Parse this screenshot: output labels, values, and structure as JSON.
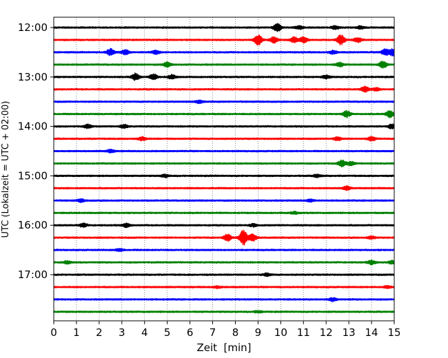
{
  "chart_data": {
    "type": "line",
    "title": "",
    "xlabel": "Zeit  [min]",
    "ylabel": "UTC (Lokalzeit = UTC + 02:00)",
    "xlim": [
      0,
      15
    ],
    "x_ticks": [
      0,
      1,
      2,
      3,
      4,
      5,
      6,
      7,
      8,
      9,
      10,
      11,
      12,
      13,
      14,
      15
    ],
    "x_grid": "dotted vertical lines at each minute",
    "y_ticks": [
      "12:00",
      "13:00",
      "14:00",
      "15:00",
      "16:00",
      "17:00"
    ],
    "rows_per_hour": 4,
    "row_minutes": 15,
    "color_cycle": [
      "#000000",
      "#ff0000",
      "#0000ff",
      "#008000"
    ],
    "rows": [
      {
        "start": "12:00",
        "color": "#000000",
        "events": [
          {
            "t": 9.85,
            "amp": 1.0
          },
          {
            "t": 10.8,
            "amp": 0.45
          },
          {
            "t": 12.4,
            "amp": 0.4
          },
          {
            "t": 13.5,
            "amp": 0.35
          }
        ]
      },
      {
        "start": "12:15",
        "color": "#ff0000",
        "events": [
          {
            "t": 9.0,
            "amp": 1.4
          },
          {
            "t": 9.7,
            "amp": 0.8
          },
          {
            "t": 10.6,
            "amp": 0.7
          },
          {
            "t": 11.0,
            "amp": 0.7
          },
          {
            "t": 12.65,
            "amp": 1.3
          },
          {
            "t": 13.4,
            "amp": 0.6
          }
        ]
      },
      {
        "start": "12:30",
        "color": "#0000ff",
        "events": [
          {
            "t": 2.5,
            "amp": 0.9
          },
          {
            "t": 3.15,
            "amp": 0.6
          },
          {
            "t": 4.5,
            "amp": 0.45
          },
          {
            "t": 12.3,
            "amp": 0.4
          },
          {
            "t": 14.6,
            "amp": 0.8
          },
          {
            "t": 14.95,
            "amp": 1.0
          }
        ]
      },
      {
        "start": "12:45",
        "color": "#008000",
        "events": [
          {
            "t": 5.0,
            "amp": 0.6
          },
          {
            "t": 12.6,
            "amp": 0.5
          },
          {
            "t": 14.5,
            "amp": 0.9
          }
        ]
      },
      {
        "start": "13:00",
        "color": "#000000",
        "events": [
          {
            "t": 3.6,
            "amp": 0.9
          },
          {
            "t": 4.4,
            "amp": 0.7
          },
          {
            "t": 5.2,
            "amp": 0.5
          },
          {
            "t": 12.0,
            "amp": 0.4
          }
        ]
      },
      {
        "start": "13:15",
        "color": "#ff0000",
        "events": [
          {
            "t": 13.7,
            "amp": 0.7
          },
          {
            "t": 14.2,
            "amp": 0.35
          }
        ]
      },
      {
        "start": "13:30",
        "color": "#0000ff",
        "events": [
          {
            "t": 6.4,
            "amp": 0.35
          }
        ]
      },
      {
        "start": "13:45",
        "color": "#008000",
        "events": [
          {
            "t": 12.9,
            "amp": 0.8
          },
          {
            "t": 14.8,
            "amp": 0.9
          }
        ]
      },
      {
        "start": "14:00",
        "color": "#000000",
        "events": [
          {
            "t": 1.5,
            "amp": 0.45
          },
          {
            "t": 3.1,
            "amp": 0.4
          },
          {
            "t": 14.9,
            "amp": 0.6
          }
        ]
      },
      {
        "start": "14:15",
        "color": "#ff0000",
        "events": [
          {
            "t": 3.9,
            "amp": 0.4
          },
          {
            "t": 12.5,
            "amp": 0.45
          },
          {
            "t": 14.0,
            "amp": 0.55
          }
        ]
      },
      {
        "start": "14:30",
        "color": "#0000ff",
        "events": [
          {
            "t": 2.5,
            "amp": 0.35
          }
        ]
      },
      {
        "start": "14:45",
        "color": "#008000",
        "events": [
          {
            "t": 12.7,
            "amp": 0.8
          },
          {
            "t": 13.1,
            "amp": 0.45
          }
        ]
      },
      {
        "start": "15:00",
        "color": "#000000",
        "events": [
          {
            "t": 4.9,
            "amp": 0.35
          },
          {
            "t": 11.6,
            "amp": 0.35
          }
        ]
      },
      {
        "start": "15:15",
        "color": "#ff0000",
        "events": [
          {
            "t": 12.9,
            "amp": 0.45
          }
        ]
      },
      {
        "start": "15:30",
        "color": "#0000ff",
        "events": [
          {
            "t": 1.2,
            "amp": 0.35
          },
          {
            "t": 11.3,
            "amp": 0.3
          }
        ]
      },
      {
        "start": "15:45",
        "color": "#008000",
        "events": [
          {
            "t": 10.6,
            "amp": 0.3
          }
        ]
      },
      {
        "start": "16:00",
        "color": "#000000",
        "events": [
          {
            "t": 1.3,
            "amp": 0.45
          },
          {
            "t": 3.2,
            "amp": 0.45
          },
          {
            "t": 8.8,
            "amp": 0.35
          }
        ]
      },
      {
        "start": "16:15",
        "color": "#ff0000",
        "events": [
          {
            "t": 7.65,
            "amp": 0.9
          },
          {
            "t": 8.35,
            "amp": 2.0
          },
          {
            "t": 8.75,
            "amp": 0.9
          },
          {
            "t": 14.0,
            "amp": 0.35
          }
        ]
      },
      {
        "start": "16:30",
        "color": "#0000ff",
        "events": [
          {
            "t": 2.9,
            "amp": 0.3
          }
        ]
      },
      {
        "start": "16:45",
        "color": "#008000",
        "events": [
          {
            "t": 0.6,
            "amp": 0.35
          },
          {
            "t": 14.0,
            "amp": 0.45
          },
          {
            "t": 14.9,
            "amp": 0.4
          }
        ]
      },
      {
        "start": "17:00",
        "color": "#000000",
        "events": [
          {
            "t": 9.4,
            "amp": 0.35
          }
        ]
      },
      {
        "start": "17:15",
        "color": "#ff0000",
        "events": [
          {
            "t": 7.2,
            "amp": 0.25
          },
          {
            "t": 14.7,
            "amp": 0.25
          }
        ]
      },
      {
        "start": "17:30",
        "color": "#0000ff",
        "events": [
          {
            "t": 12.3,
            "amp": 0.4
          }
        ]
      },
      {
        "start": "17:45",
        "color": "#008000",
        "events": [
          {
            "t": 9.0,
            "amp": 0.25
          }
        ]
      }
    ]
  }
}
